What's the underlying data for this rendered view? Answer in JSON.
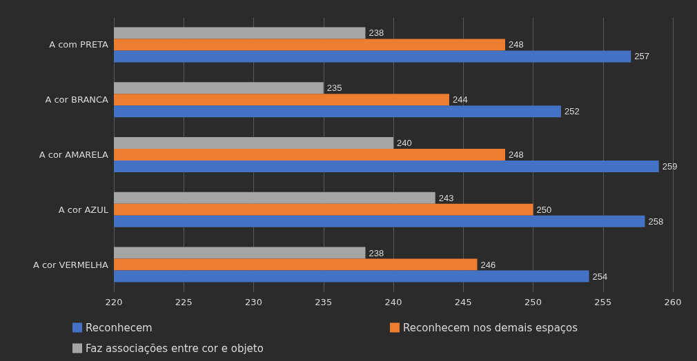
{
  "chart_data": {
    "type": "bar",
    "orientation": "horizontal",
    "categories": [
      "A com PRETA",
      "A cor BRANCA",
      "A cor AMARELA",
      "A cor AZUL",
      "A cor VERMELHA"
    ],
    "series": [
      {
        "name": "Reconhecem",
        "color": "#4472c4",
        "values": [
          257,
          252,
          259,
          258,
          254
        ]
      },
      {
        "name": "Reconhecem nos demais espaços",
        "color": "#ed7d31",
        "values": [
          248,
          244,
          248,
          250,
          246
        ]
      },
      {
        "name": "Faz associações entre cor e objeto",
        "color": "#a5a5a5",
        "values": [
          238,
          235,
          240,
          243,
          238
        ]
      }
    ],
    "xlim": [
      220,
      260
    ],
    "xticks": [
      220,
      225,
      230,
      235,
      240,
      245,
      250,
      255,
      260
    ],
    "grid": "x",
    "legend": "bottom",
    "data_labels": true
  }
}
